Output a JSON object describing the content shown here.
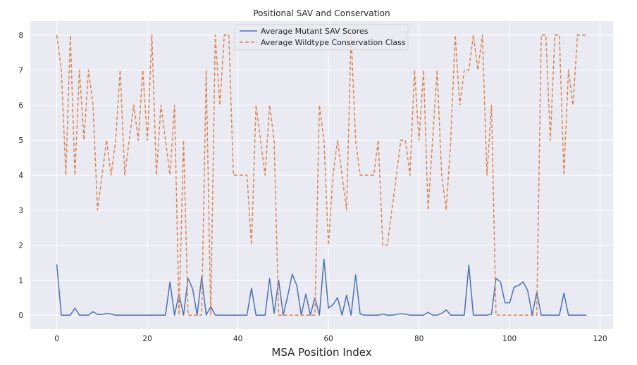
{
  "chart_data": {
    "type": "line",
    "title": "Positional SAV and Conservation",
    "xlabel": "MSA Position Index",
    "ylabel": "",
    "xlim": [
      -5.85,
      122.85
    ],
    "ylim": [
      -0.4,
      8.4
    ],
    "xticks": [
      0,
      20,
      40,
      60,
      80,
      100,
      120
    ],
    "yticks": [
      0,
      1,
      2,
      3,
      4,
      5,
      6,
      7,
      8
    ],
    "grid": true,
    "legend_position": "top-center",
    "x": [
      0,
      1,
      2,
      3,
      4,
      5,
      6,
      7,
      8,
      9,
      10,
      11,
      12,
      13,
      14,
      15,
      16,
      17,
      18,
      19,
      20,
      21,
      22,
      23,
      24,
      25,
      26,
      27,
      28,
      29,
      30,
      31,
      32,
      33,
      34,
      35,
      36,
      37,
      38,
      39,
      40,
      41,
      42,
      43,
      44,
      45,
      46,
      47,
      48,
      49,
      50,
      51,
      52,
      53,
      54,
      55,
      56,
      57,
      58,
      59,
      60,
      61,
      62,
      63,
      64,
      65,
      66,
      67,
      68,
      69,
      70,
      71,
      72,
      73,
      74,
      75,
      76,
      77,
      78,
      79,
      80,
      81,
      82,
      83,
      84,
      85,
      86,
      87,
      88,
      89,
      90,
      91,
      92,
      93,
      94,
      95,
      96,
      97,
      98,
      99,
      100,
      101,
      102,
      103,
      104,
      105,
      106,
      107,
      108,
      109,
      110,
      111,
      112,
      113,
      114,
      115,
      116,
      117
    ],
    "series": [
      {
        "name": "Average Mutant SAV Scores",
        "color": "#4c72b0",
        "style": "solid",
        "values": [
          1.45,
          0,
          0,
          0,
          0.2,
          0,
          0,
          0,
          0.1,
          0.02,
          0.02,
          0.05,
          0.03,
          0,
          0,
          0,
          0,
          0,
          0,
          0,
          0,
          0,
          0,
          0,
          0,
          0.95,
          0,
          0.6,
          0,
          1.05,
          0.75,
          0,
          1.1,
          0,
          0.25,
          0,
          0,
          0,
          0,
          0,
          0,
          0,
          0,
          0.77,
          0,
          0,
          0,
          1.05,
          0.05,
          1.0,
          0,
          0.55,
          1.17,
          0.85,
          0,
          0.6,
          0,
          0.5,
          0,
          1.6,
          0.2,
          0.3,
          0.5,
          0,
          0.57,
          0,
          1.15,
          0.03,
          0,
          0,
          0,
          0,
          0.03,
          0,
          0,
          0.02,
          0.04,
          0.03,
          0,
          0,
          0,
          0,
          0.08,
          0,
          0,
          0.05,
          0.15,
          0,
          0,
          0,
          0,
          1.43,
          0,
          0,
          0,
          0,
          0.03,
          1.05,
          0.95,
          0.35,
          0.35,
          0.8,
          0.85,
          0.95,
          0.7,
          0,
          0.65,
          0,
          0,
          0,
          0,
          0,
          0.63,
          0,
          0,
          0,
          0,
          0
        ]
      },
      {
        "name": "Average Wildtype Conservation Class",
        "color": "#dd8452",
        "style": "dashed",
        "values": [
          8,
          7,
          4,
          8,
          4,
          7,
          5,
          7,
          6,
          3,
          4,
          5,
          4,
          5,
          7,
          4,
          5,
          6,
          5,
          7,
          5,
          8,
          4,
          6,
          5,
          4,
          6,
          0,
          5,
          0,
          0,
          0,
          0,
          7,
          0,
          8,
          6,
          8,
          8,
          4,
          4,
          4,
          4,
          2,
          6,
          5,
          4,
          6,
          5,
          0,
          0,
          0,
          0,
          0,
          0,
          0,
          0,
          0,
          6,
          5,
          2,
          4,
          5,
          4,
          3,
          8,
          5,
          4,
          4,
          4,
          4,
          5,
          2,
          2,
          3,
          4,
          5,
          5,
          4,
          7,
          5,
          7,
          3,
          5,
          7,
          4,
          3,
          5,
          8,
          6,
          7,
          7,
          8,
          7,
          8,
          4,
          6,
          0,
          0,
          0,
          0,
          0,
          0,
          0,
          0,
          0,
          0,
          8,
          8,
          5,
          8,
          8,
          4,
          7,
          6,
          8,
          8,
          8
        ]
      }
    ]
  }
}
